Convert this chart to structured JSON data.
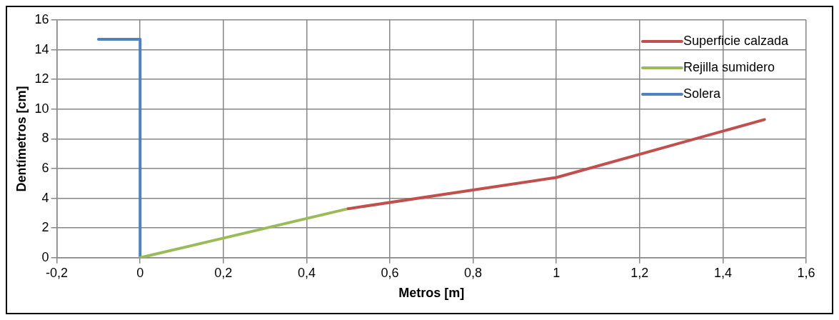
{
  "chart_data": {
    "type": "line",
    "xlabel": "Metros [m]",
    "ylabel": "Dentímetros [cm]",
    "xlim": [
      -0.2,
      1.6
    ],
    "xticks": [
      {
        "value": -0.2,
        "label": "-0,2"
      },
      0,
      {
        "value": 0.2,
        "label": "0,2"
      },
      {
        "value": 0.4,
        "label": "0,4"
      },
      {
        "value": 0.6,
        "label": "0,6"
      },
      {
        "value": 0.8,
        "label": "0,8"
      },
      1,
      {
        "value": 1.2,
        "label": "1,2"
      },
      {
        "value": 1.4,
        "label": "1,4"
      },
      {
        "value": 1.6,
        "label": "1,6"
      }
    ],
    "ylim": [
      0,
      16
    ],
    "yticks": [
      0,
      2,
      4,
      6,
      8,
      10,
      12,
      14,
      16
    ],
    "grid": true,
    "legend": "top right",
    "marker": "none",
    "line_style": "solid",
    "series": [
      {
        "name": "Superficie calzada",
        "color": "#c0504d",
        "x": [
          0.5,
          1,
          1.5
        ],
        "values": [
          3.3,
          5.4,
          9.3
        ]
      },
      {
        "name": "Rejilla sumidero",
        "color": "#9bbb59",
        "x": [
          0,
          0.5
        ],
        "values": [
          0,
          3.3
        ]
      },
      {
        "name": "Solera",
        "color": "#4f81bd",
        "x": [
          -0.1,
          0,
          0
        ],
        "values": [
          14.7,
          14.7,
          0
        ]
      }
    ]
  }
}
